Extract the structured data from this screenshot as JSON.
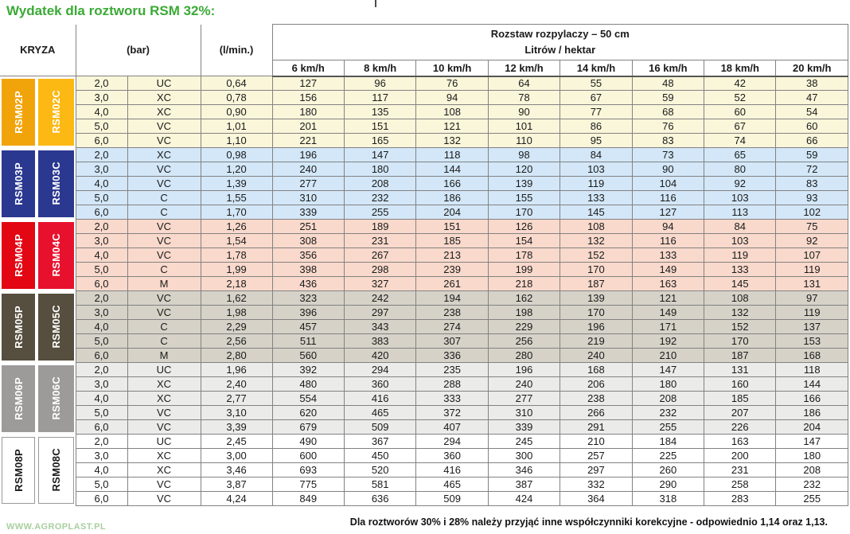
{
  "title": "Wydatek dla roztworu RSM 32%:",
  "header": {
    "kryza": "KRYZA",
    "bar": "(bar)",
    "lmin": "(l/min.)",
    "span_line1": "Rozstaw rozpylaczy – 50 cm",
    "span_line2": "Litrów / hektar",
    "speeds": [
      "6 km/h",
      "8 km/h",
      "10 km/h",
      "12 km/h",
      "14 km/h",
      "16 km/h",
      "18 km/h",
      "20 km/h"
    ]
  },
  "colors": {
    "title_green": "#3aaa35",
    "border_gray": "#828282",
    "rsm02_p": "#F1A30A",
    "rsm02_c": "#FCB813",
    "rsm03": "#2B3890",
    "rsm04_p": "#E30613",
    "rsm04_c": "#E8112D",
    "rsm05": "#564E3E",
    "rsm06": "#9C9B99",
    "rsm08": "#FFFFFF"
  },
  "groups": [
    {
      "label_p": "RSM02P",
      "label_c": "RSM02C",
      "color_p": "#F1A30A",
      "color_c": "#FCB813",
      "dark_text": false,
      "row_bg": "#FAF6DA",
      "rows": [
        {
          "bar": "2,0",
          "type": "UC",
          "lmin": "0,64",
          "values": [
            127,
            96,
            76,
            64,
            55,
            48,
            42,
            38
          ]
        },
        {
          "bar": "3,0",
          "type": "XC",
          "lmin": "0,78",
          "values": [
            156,
            117,
            94,
            78,
            67,
            59,
            52,
            47
          ]
        },
        {
          "bar": "4,0",
          "type": "XC",
          "lmin": "0,90",
          "values": [
            180,
            135,
            108,
            90,
            77,
            68,
            60,
            54
          ]
        },
        {
          "bar": "5,0",
          "type": "VC",
          "lmin": "1,01",
          "values": [
            201,
            151,
            121,
            101,
            86,
            76,
            67,
            60
          ]
        },
        {
          "bar": "6,0",
          "type": "VC",
          "lmin": "1,10",
          "values": [
            221,
            165,
            132,
            110,
            95,
            83,
            74,
            66
          ]
        }
      ]
    },
    {
      "label_p": "RSM03P",
      "label_c": "RSM03C",
      "color_p": "#2B3890",
      "color_c": "#2B3890",
      "dark_text": false,
      "row_bg": "#D3E7F8",
      "rows": [
        {
          "bar": "2,0",
          "type": "XC",
          "lmin": "0,98",
          "values": [
            196,
            147,
            118,
            98,
            84,
            73,
            65,
            59
          ]
        },
        {
          "bar": "3,0",
          "type": "VC",
          "lmin": "1,20",
          "values": [
            240,
            180,
            144,
            120,
            103,
            90,
            80,
            72
          ]
        },
        {
          "bar": "4,0",
          "type": "VC",
          "lmin": "1,39",
          "values": [
            277,
            208,
            166,
            139,
            119,
            104,
            92,
            83
          ]
        },
        {
          "bar": "5,0",
          "type": "C",
          "lmin": "1,55",
          "values": [
            310,
            232,
            186,
            155,
            133,
            116,
            103,
            93
          ]
        },
        {
          "bar": "6,0",
          "type": "C",
          "lmin": "1,70",
          "values": [
            339,
            255,
            204,
            170,
            145,
            127,
            113,
            102
          ]
        }
      ]
    },
    {
      "label_p": "RSM04P",
      "label_c": "RSM04C",
      "color_p": "#E30613",
      "color_c": "#E8112D",
      "dark_text": false,
      "row_bg": "#F9D9CC",
      "rows": [
        {
          "bar": "2,0",
          "type": "VC",
          "lmin": "1,26",
          "values": [
            251,
            189,
            151,
            126,
            108,
            94,
            84,
            75
          ]
        },
        {
          "bar": "3,0",
          "type": "VC",
          "lmin": "1,54",
          "values": [
            308,
            231,
            185,
            154,
            132,
            116,
            103,
            92
          ]
        },
        {
          "bar": "4,0",
          "type": "VC",
          "lmin": "1,78",
          "values": [
            356,
            267,
            213,
            178,
            152,
            133,
            119,
            107
          ]
        },
        {
          "bar": "5,0",
          "type": "C",
          "lmin": "1,99",
          "values": [
            398,
            298,
            239,
            199,
            170,
            149,
            133,
            119
          ]
        },
        {
          "bar": "6,0",
          "type": "M",
          "lmin": "2,18",
          "values": [
            436,
            327,
            261,
            218,
            187,
            163,
            145,
            131
          ]
        }
      ]
    },
    {
      "label_p": "RSM05P",
      "label_c": "RSM05C",
      "color_p": "#564E3E",
      "color_c": "#564E3E",
      "dark_text": false,
      "row_bg": "#D6D2C8",
      "rows": [
        {
          "bar": "2,0",
          "type": "VC",
          "lmin": "1,62",
          "values": [
            323,
            242,
            194,
            162,
            139,
            121,
            108,
            97
          ]
        },
        {
          "bar": "3,0",
          "type": "VC",
          "lmin": "1,98",
          "values": [
            396,
            297,
            238,
            198,
            170,
            149,
            132,
            119
          ]
        },
        {
          "bar": "4,0",
          "type": "C",
          "lmin": "2,29",
          "values": [
            457,
            343,
            274,
            229,
            196,
            171,
            152,
            137
          ]
        },
        {
          "bar": "5,0",
          "type": "C",
          "lmin": "2,56",
          "values": [
            511,
            383,
            307,
            256,
            219,
            192,
            170,
            153
          ]
        },
        {
          "bar": "6,0",
          "type": "M",
          "lmin": "2,80",
          "values": [
            560,
            420,
            336,
            280,
            240,
            210,
            187,
            168
          ]
        }
      ]
    },
    {
      "label_p": "RSM06P",
      "label_c": "RSM06C",
      "color_p": "#9C9B99",
      "color_c": "#9C9B99",
      "dark_text": false,
      "row_bg": "#EBEBE9",
      "rows": [
        {
          "bar": "2,0",
          "type": "UC",
          "lmin": "1,96",
          "values": [
            392,
            294,
            235,
            196,
            168,
            147,
            131,
            118
          ]
        },
        {
          "bar": "3,0",
          "type": "XC",
          "lmin": "2,40",
          "values": [
            480,
            360,
            288,
            240,
            206,
            180,
            160,
            144
          ]
        },
        {
          "bar": "4,0",
          "type": "XC",
          "lmin": "2,77",
          "values": [
            554,
            416,
            333,
            277,
            238,
            208,
            185,
            166
          ]
        },
        {
          "bar": "5,0",
          "type": "VC",
          "lmin": "3,10",
          "values": [
            620,
            465,
            372,
            310,
            266,
            232,
            207,
            186
          ]
        },
        {
          "bar": "6,0",
          "type": "VC",
          "lmin": "3,39",
          "values": [
            679,
            509,
            407,
            339,
            291,
            255,
            226,
            204
          ]
        }
      ]
    },
    {
      "label_p": "RSM08P",
      "label_c": "RSM08C",
      "color_p": "#FFFFFF",
      "color_c": "#FFFFFF",
      "dark_text": true,
      "row_bg": "#FFFFFF",
      "rows": [
        {
          "bar": "2,0",
          "type": "UC",
          "lmin": "2,45",
          "values": [
            490,
            367,
            294,
            245,
            210,
            184,
            163,
            147
          ]
        },
        {
          "bar": "3,0",
          "type": "XC",
          "lmin": "3,00",
          "values": [
            600,
            450,
            360,
            300,
            257,
            225,
            200,
            180
          ]
        },
        {
          "bar": "4,0",
          "type": "XC",
          "lmin": "3,46",
          "values": [
            693,
            520,
            416,
            346,
            297,
            260,
            231,
            208
          ]
        },
        {
          "bar": "5,0",
          "type": "VC",
          "lmin": "3,87",
          "values": [
            775,
            581,
            465,
            387,
            332,
            290,
            258,
            232
          ]
        },
        {
          "bar": "6,0",
          "type": "VC",
          "lmin": "4,24",
          "values": [
            849,
            636,
            509,
            424,
            364,
            318,
            283,
            255
          ]
        }
      ]
    }
  ],
  "footer": {
    "website": "WWW.AGROPLAST.PL",
    "note": "Dla roztworów 30% i 28% należy przyjąć inne współczynniki korekcyjne - odpowiednio 1,14 oraz 1,13."
  }
}
